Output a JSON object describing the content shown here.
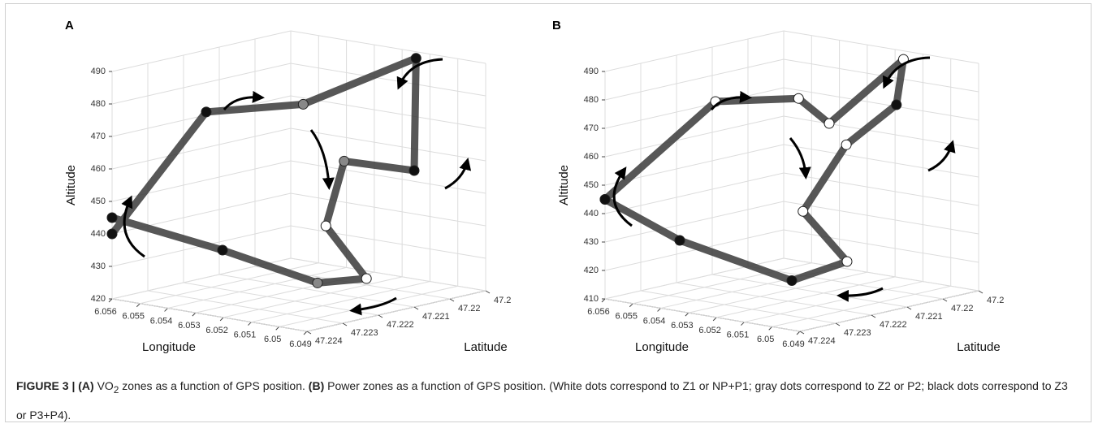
{
  "chart_data": [
    {
      "type": "scatter3d",
      "label": "A",
      "xlabel": "Longitude",
      "ylabel": "Latitude",
      "zlabel": "Altitude",
      "xlim": [
        6.056,
        6.049
      ],
      "xticks": [
        6.056,
        6.055,
        6.054,
        6.053,
        6.052,
        6.051,
        6.05,
        6.049
      ],
      "ylim": [
        47.224,
        47.219
      ],
      "yticks": [
        47.224,
        47.223,
        47.222,
        47.221,
        47.22,
        {
          "value": 47.219,
          "label": "47.2"
        }
      ],
      "zlim": [
        420,
        490
      ],
      "zticks": [
        420,
        430,
        440,
        450,
        460,
        470,
        480,
        490
      ],
      "grid": true,
      "x": [
        6.056,
        6.0548,
        6.0526,
        6.0515,
        6.049,
        6.0519,
        6.0523,
        6.0511,
        6.0526,
        6.0546,
        6.056
      ],
      "y": [
        47.224,
        47.2223,
        47.2213,
        47.219,
        47.221,
        47.2207,
        47.2209,
        47.2207,
        47.2209,
        47.222,
        47.224
      ],
      "z": [
        440,
        475,
        478,
        488,
        462,
        460,
        440,
        425,
        422,
        432,
        445
      ],
      "colors": [
        "#111111",
        "#111111",
        "#888888",
        "#111111",
        "#111111",
        "#888888",
        "#ffffff",
        "#ffffff",
        "#888888",
        "#111111",
        "#111111"
      ]
    },
    {
      "type": "scatter3d",
      "label": "B",
      "xlabel": "Longitude",
      "ylabel": "Latitude",
      "zlabel": "Altitude",
      "xlim": [
        6.056,
        6.049
      ],
      "xticks": [
        6.056,
        6.055,
        6.054,
        6.053,
        6.052,
        6.051,
        6.05,
        6.049
      ],
      "ylim": [
        47.224,
        47.219
      ],
      "yticks": [
        47.224,
        47.223,
        47.222,
        47.221,
        47.22,
        {
          "value": 47.219,
          "label": "47.2"
        }
      ],
      "zlim": [
        410,
        490
      ],
      "zticks": [
        410,
        420,
        430,
        440,
        450,
        460,
        470,
        480,
        490
      ],
      "grid": true,
      "x": [
        6.056,
        6.0546,
        6.0529,
        6.0518,
        6.0517,
        6.049,
        6.0508,
        6.0521,
        6.0518,
        6.0525,
        6.0546,
        6.056
      ],
      "y": [
        47.224,
        47.222,
        47.221,
        47.221,
        47.219,
        47.2213,
        47.2213,
        47.2215,
        47.2205,
        47.2215,
        47.223,
        47.224
      ],
      "z": [
        445,
        476,
        477,
        470,
        487,
        482,
        465,
        440,
        420,
        415,
        430,
        445
      ],
      "colors": [
        "#ffffff",
        "#ffffff",
        "#ffffff",
        "#ffffff",
        "#ffffff",
        "#111111",
        "#ffffff",
        "#ffffff",
        "#ffffff",
        "#111111",
        "#111111",
        "#111111"
      ]
    }
  ],
  "caption": {
    "label": "FIGURE 3 |",
    "a_label": "(A)",
    "a_text_1": "VO",
    "a_sub": "2",
    "a_text_2": "zones as a function of GPS position.",
    "b_label": "(B)",
    "b_text": "Power zones as a function of GPS position. (White dots correspond to Z1 or NP+P1; gray dots correspond to Z2 or P2; black dots correspond to Z3 or P3+P4)."
  }
}
